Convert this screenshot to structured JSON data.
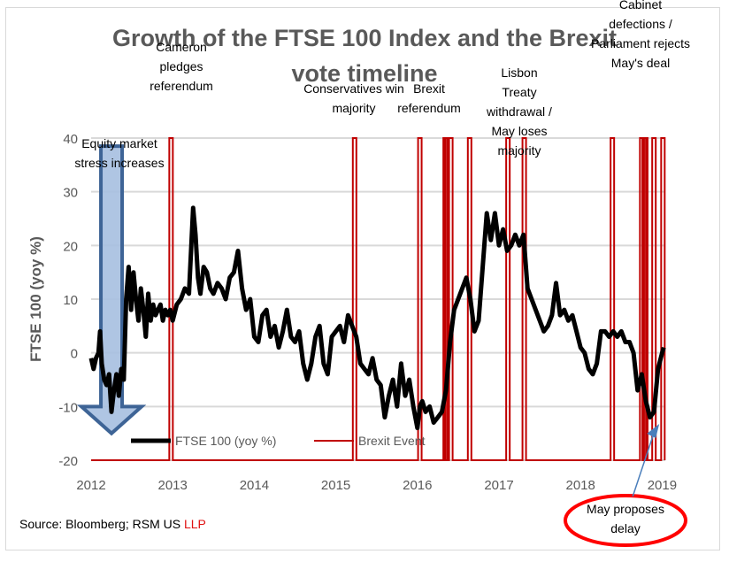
{
  "chart_data": {
    "type": "line",
    "title_lines": [
      "Growth of the FTSE 100 Index and the Brexit",
      "vote timeline"
    ],
    "xlabel": "",
    "ylabel": "FTSE 100 (yoy %)",
    "xlim": [
      2012,
      2019.05
    ],
    "ylim": [
      -20,
      40
    ],
    "x_ticks": [
      2012,
      2013,
      2014,
      2015,
      2016,
      2017,
      2018,
      2019
    ],
    "x_tick_labels": [
      "2012",
      "2013",
      "2014",
      "2015",
      "2016",
      "2017",
      "2018",
      "2019"
    ],
    "y_ticks": [
      -20,
      -10,
      0,
      10,
      20,
      30,
      40
    ],
    "y_tick_labels": [
      "-20",
      "-10",
      "0",
      "10",
      "20",
      "30",
      "40"
    ],
    "grid": true,
    "legend_position": "bottom-inside",
    "series": [
      {
        "name": "FTSE 100 (yoy %)",
        "color": "#000000",
        "style": "line",
        "x": [
          2012.0,
          2012.03,
          2012.06,
          2012.09,
          2012.11,
          2012.13,
          2012.16,
          2012.19,
          2012.22,
          2012.25,
          2012.28,
          2012.31,
          2012.34,
          2012.37,
          2012.4,
          2012.43,
          2012.46,
          2012.49,
          2012.52,
          2012.55,
          2012.58,
          2012.61,
          2012.64,
          2012.67,
          2012.7,
          2012.73,
          2012.76,
          2012.79,
          2012.82,
          2012.85,
          2012.88,
          2012.91,
          2012.94,
          2012.97,
          2013.0,
          2013.05,
          2013.1,
          2013.15,
          2013.2,
          2013.25,
          2013.28,
          2013.31,
          2013.34,
          2013.38,
          2013.42,
          2013.46,
          2013.5,
          2013.55,
          2013.6,
          2013.65,
          2013.7,
          2013.75,
          2013.8,
          2013.85,
          2013.9,
          2013.95,
          2014.0,
          2014.05,
          2014.1,
          2014.15,
          2014.2,
          2014.25,
          2014.3,
          2014.35,
          2014.4,
          2014.45,
          2014.5,
          2014.55,
          2014.6,
          2014.65,
          2014.7,
          2014.75,
          2014.8,
          2014.85,
          2014.9,
          2014.95,
          2015.0,
          2015.05,
          2015.1,
          2015.15,
          2015.2,
          2015.25,
          2015.3,
          2015.35,
          2015.4,
          2015.45,
          2015.5,
          2015.55,
          2015.6,
          2015.65,
          2015.7,
          2015.75,
          2015.8,
          2015.85,
          2015.9,
          2015.95,
          2016.0,
          2016.03,
          2016.06,
          2016.1,
          2016.15,
          2016.2,
          2016.25,
          2016.3,
          2016.35,
          2016.4,
          2016.45,
          2016.5,
          2016.55,
          2016.6,
          2016.65,
          2016.7,
          2016.75,
          2016.8,
          2016.85,
          2016.9,
          2016.95,
          2017.0,
          2017.05,
          2017.1,
          2017.15,
          2017.2,
          2017.25,
          2017.3,
          2017.35,
          2017.4,
          2017.45,
          2017.5,
          2017.55,
          2017.6,
          2017.65,
          2017.7,
          2017.75,
          2017.8,
          2017.85,
          2017.9,
          2017.95,
          2018.0,
          2018.05,
          2018.1,
          2018.15,
          2018.2,
          2018.25,
          2018.3,
          2018.35,
          2018.4,
          2018.45,
          2018.5,
          2018.55,
          2018.6,
          2018.65,
          2018.7,
          2018.75,
          2018.8,
          2018.85,
          2018.9,
          2018.95,
          2019.0,
          2019.02
        ],
        "values": [
          -1,
          -3,
          -1,
          0,
          4,
          -2,
          -5,
          -6,
          -4,
          -11,
          -7,
          -4,
          -8,
          -3,
          -5,
          10,
          16,
          8,
          15,
          10,
          6,
          12,
          8,
          3,
          11,
          6,
          9,
          7,
          8,
          9,
          6,
          8,
          7,
          8,
          6,
          9,
          10,
          12,
          11,
          27,
          22,
          14,
          11,
          16,
          15,
          12,
          11,
          13,
          12,
          10,
          14,
          15,
          19,
          12,
          8,
          10,
          3,
          2,
          7,
          8,
          3,
          5,
          1,
          4,
          8,
          3,
          2,
          4,
          -2,
          -5,
          -2,
          3,
          5,
          -2,
          -4,
          3,
          4,
          5,
          2,
          7,
          5,
          3,
          -2,
          -3,
          -4,
          -1,
          -5,
          -6,
          -12,
          -8,
          -5,
          -10,
          -2,
          -8,
          -5,
          -10,
          -14,
          -10,
          -9,
          -11,
          -10,
          -13,
          -12,
          -11,
          -7,
          2,
          8,
          10,
          12,
          14,
          10,
          4,
          6,
          16,
          26,
          21,
          26,
          20,
          23,
          19,
          20,
          22,
          20,
          22,
          12,
          10,
          8,
          6,
          4,
          5,
          7,
          13,
          7,
          8,
          6,
          7,
          4,
          1,
          0,
          -3,
          -4,
          -2,
          4,
          4,
          3,
          4,
          3,
          4,
          2,
          2,
          0,
          -7,
          -4,
          -9,
          -12,
          -11,
          -3,
          0,
          1
        ],
        "notes": "Weekly yoy % changes approximated from the chart line"
      },
      {
        "name": "Brexit Event",
        "color": "#c00000",
        "style": "step-spike",
        "baseline": -20,
        "spike_value": 40,
        "event_x": [
          2012.98,
          2015.23,
          2016.03,
          2016.34,
          2016.36,
          2016.41,
          2016.64,
          2017.11,
          2017.31,
          2018.39,
          2018.75,
          2018.78,
          2018.8,
          2018.9,
          2019.01
        ]
      }
    ],
    "annotations": [
      {
        "text_lines": [
          "Cameron",
          "pledges",
          "referendum"
        ],
        "x": 2012.98,
        "near": "top"
      },
      {
        "text_lines": [
          "Conservatives win",
          "majority"
        ],
        "x": 2015.23,
        "near": "top"
      },
      {
        "text_lines": [
          "Brexit",
          "referendum"
        ],
        "x": 2016.35,
        "near": "top"
      },
      {
        "text_lines": [
          "Lisbon",
          "Treaty",
          "withdrawal /",
          "May loses",
          "majority"
        ],
        "x": 2017.2,
        "near": "upper-middle"
      },
      {
        "text_lines": [
          "Cabinet",
          "defections /",
          "Parliament rejects",
          "May's deal"
        ],
        "x": 2018.8,
        "near": "top"
      },
      {
        "text_lines": [
          "Equity market",
          "stress increases"
        ],
        "x": 2012.4,
        "near": "upper-left"
      },
      {
        "text_lines": [
          "May proposes",
          "delay"
        ],
        "x": 2018.9,
        "near": "below-axis",
        "shape": "red-ellipse"
      }
    ],
    "highlight_arrow": {
      "label": "Equity market stress increases",
      "x": 2012.25,
      "from_value": 38.5,
      "to_value": -15,
      "color": "#a6bfe0",
      "border": "#3e6496"
    },
    "source_text": "Source: Bloomberg; RSM US ",
    "source_suffix": "LLP"
  }
}
